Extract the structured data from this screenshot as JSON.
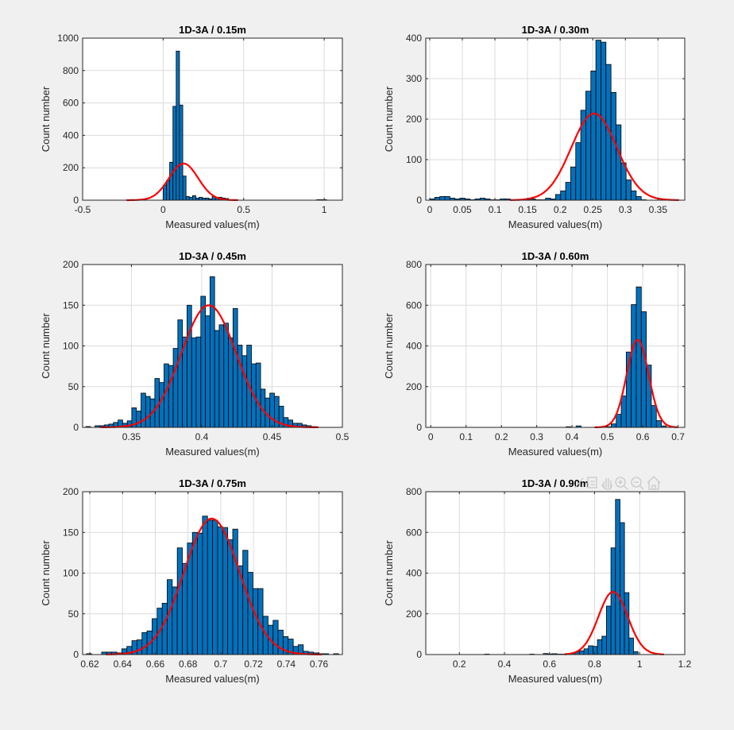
{
  "colors": {
    "bar": "#0072BD",
    "fit": "#FF0000",
    "background": "#F0F0F0"
  },
  "toolbar": {
    "icons": [
      "brush-icon",
      "data-cursor-icon",
      "pan-hand-icon",
      "zoom-in-icon",
      "zoom-out-icon",
      "home-icon"
    ]
  },
  "chart_data": [
    {
      "type": "bar",
      "title": "1D-3A / 0.15m",
      "xlabel": "Measured values(m)",
      "ylabel": "Count number",
      "xlim": [
        -0.5,
        1.113
      ],
      "ylim": [
        0,
        1000
      ],
      "xticks": [
        "-0.5",
        "0",
        "0.5",
        "1"
      ],
      "xtick_values": [
        -0.5,
        0,
        0.5,
        1
      ],
      "yticks": [
        "0",
        "200",
        "400",
        "600",
        "800",
        "1000"
      ],
      "ytick_values": [
        0,
        200,
        400,
        600,
        800,
        1000
      ],
      "bin_start": 0,
      "bin_width": 0.0203,
      "counts": [
        92,
        121,
        234,
        579,
        920,
        587,
        149,
        23,
        18,
        28,
        13,
        18,
        13,
        13,
        8,
        23,
        18,
        18,
        13,
        10,
        0,
        0,
        0,
        0,
        0,
        0,
        0,
        0,
        0,
        0,
        0,
        0,
        0,
        0,
        0,
        0,
        0,
        0,
        0,
        0,
        0,
        0,
        0,
        0,
        0,
        0,
        0,
        3,
        3,
        3
      ],
      "fit": {
        "mu": 0.127,
        "sigma": 0.09,
        "peak": 226,
        "range": [
          -0.227,
          0.465
        ]
      },
      "grid": true
    },
    {
      "type": "bar",
      "title": "1D-3A / 0.30m",
      "xlabel": "Measured values(m)",
      "ylabel": "Count number",
      "xlim": [
        -0.006,
        0.391
      ],
      "ylim": [
        0,
        400
      ],
      "xticks": [
        "0",
        "0.05",
        "0.1",
        "0.15",
        "0.2",
        "0.25",
        "0.3",
        "0.35"
      ],
      "xtick_values": [
        0,
        0.05,
        0.1,
        0.15,
        0.2,
        0.25,
        0.3,
        0.35
      ],
      "yticks": [
        "0",
        "100",
        "200",
        "300",
        "400"
      ],
      "ytick_values": [
        0,
        100,
        200,
        300,
        400
      ],
      "bin_start": 0,
      "bin_width": 0.00772,
      "counts": [
        3,
        7,
        9,
        9,
        5,
        3,
        5,
        3,
        1,
        3,
        5,
        3,
        1,
        1,
        3,
        3,
        1,
        1,
        0,
        1,
        3,
        1,
        1,
        5,
        3,
        14,
        23,
        44,
        82,
        142,
        222,
        269,
        319,
        395,
        390,
        335,
        266,
        186,
        92,
        50,
        23,
        9,
        1
      ],
      "fit": {
        "mu": 0.252,
        "sigma": 0.035,
        "peak": 214,
        "range": [
          0.123,
          0.382
        ]
      },
      "grid": true
    },
    {
      "type": "bar",
      "title": "1D-3A / 0.45m",
      "xlabel": "Measured values(m)",
      "ylabel": "Count number",
      "xlim": [
        0.3153,
        0.5
      ],
      "ylim": [
        0,
        200
      ],
      "xticks": [
        "0.35",
        "0.4",
        "0.45",
        "0.5"
      ],
      "xtick_values": [
        0.35,
        0.4,
        0.45,
        0.5
      ],
      "yticks": [
        "0",
        "50",
        "100",
        "150",
        "200"
      ],
      "ytick_values": [
        0,
        50,
        100,
        150,
        200
      ],
      "bin_start": 0.3176,
      "bin_width": 0.00327,
      "counts": [
        1,
        0,
        2,
        2,
        3,
        4,
        6,
        9,
        5,
        8,
        24,
        20,
        42,
        38,
        35,
        60,
        55,
        78,
        76,
        97,
        132,
        111,
        150,
        110,
        111,
        161,
        137,
        185,
        119,
        126,
        128,
        110,
        146,
        101,
        88,
        101,
        78,
        79,
        47,
        36,
        42,
        38,
        26,
        12,
        9,
        5,
        5,
        3,
        2,
        1
      ],
      "fit": {
        "mu": 0.405,
        "sigma": 0.0195,
        "peak": 150,
        "range": [
          0.328,
          0.483
        ]
      },
      "grid": true
    },
    {
      "type": "bar",
      "title": "1D-3A / 0.60m",
      "xlabel": "Measured values(m)",
      "ylabel": "Count number",
      "xlim": [
        -0.014,
        0.719
      ],
      "ylim": [
        0,
        800
      ],
      "xticks": [
        "0",
        "0.1",
        "0.2",
        "0.3",
        "0.4",
        "0.5",
        "0.6",
        "0.7"
      ],
      "xtick_values": [
        0,
        0.1,
        0.2,
        0.3,
        0.4,
        0.5,
        0.6,
        0.7
      ],
      "yticks": [
        "0",
        "200",
        "400",
        "600",
        "800"
      ],
      "ytick_values": [
        0,
        200,
        400,
        600,
        800
      ],
      "bin_start": 0.383,
      "bin_width": 0.0142,
      "counts": [
        3,
        0,
        7,
        0,
        0,
        0,
        0,
        2,
        3,
        17,
        64,
        154,
        370,
        603,
        690,
        568,
        306,
        107,
        33,
        7
      ],
      "fit": {
        "mu": 0.5856,
        "sigma": 0.031,
        "peak": 430,
        "range": [
          0.464,
          0.7
        ]
      },
      "grid": true
    },
    {
      "type": "bar",
      "title": "1D-3A / 0.75m",
      "xlabel": "Measured values(m)",
      "ylabel": "Count number",
      "xlim": [
        0.6156,
        0.7743
      ],
      "ylim": [
        0,
        200
      ],
      "xticks": [
        "0.62",
        "0.64",
        "0.66",
        "0.68",
        "0.7",
        "0.72",
        "0.74",
        "0.76"
      ],
      "xtick_values": [
        0.62,
        0.64,
        0.66,
        0.68,
        0.7,
        0.72,
        0.74,
        0.76
      ],
      "yticks": [
        "0",
        "50",
        "100",
        "150",
        "200"
      ],
      "ytick_values": [
        0,
        50,
        100,
        150,
        200
      ],
      "bin_start": 0.618,
      "bin_width": 0.00308,
      "counts": [
        1,
        0,
        0,
        3,
        3,
        3,
        2,
        7,
        10,
        17,
        18,
        27,
        29,
        44,
        57,
        63,
        92,
        83,
        131,
        112,
        137,
        150,
        149,
        170,
        165,
        165,
        157,
        156,
        141,
        154,
        109,
        128,
        101,
        81,
        81,
        47,
        36,
        42,
        30,
        22,
        19,
        10,
        12,
        4,
        3,
        2,
        1,
        1,
        0,
        1
      ],
      "fit": {
        "mu": 0.6945,
        "sigma": 0.017,
        "peak": 167,
        "range": [
          0.6297,
          0.7617
        ]
      },
      "grid": true
    },
    {
      "type": "bar",
      "title": "1D-3A / 0.90m",
      "xlabel": "Measured values(m)",
      "ylabel": "Count number",
      "xlim": [
        0.051,
        1.2
      ],
      "ylim": [
        0,
        800
      ],
      "xticks": [
        "0.2",
        "0.4",
        "0.6",
        "0.8",
        "1",
        "1.2"
      ],
      "xtick_values": [
        0.2,
        0.4,
        0.6,
        0.8,
        1,
        1.2
      ],
      "yticks": [
        "0",
        "200",
        "400",
        "600",
        "800"
      ],
      "ytick_values": [
        0,
        200,
        400,
        600,
        800
      ],
      "bin_start": 0.3126,
      "bin_width": 0.02,
      "counts": [
        2,
        0,
        0,
        0,
        0,
        0,
        0,
        0,
        0,
        0,
        2,
        0,
        0,
        5,
        3,
        4,
        2,
        2,
        5,
        8,
        12,
        18,
        28,
        43,
        40,
        73,
        90,
        238,
        524,
        762,
        648,
        304,
        81,
        14
      ],
      "fit": {
        "mu": 0.882,
        "sigma": 0.065,
        "peak": 308,
        "range": [
          0.665,
          1.108
        ]
      },
      "grid": true
    }
  ]
}
